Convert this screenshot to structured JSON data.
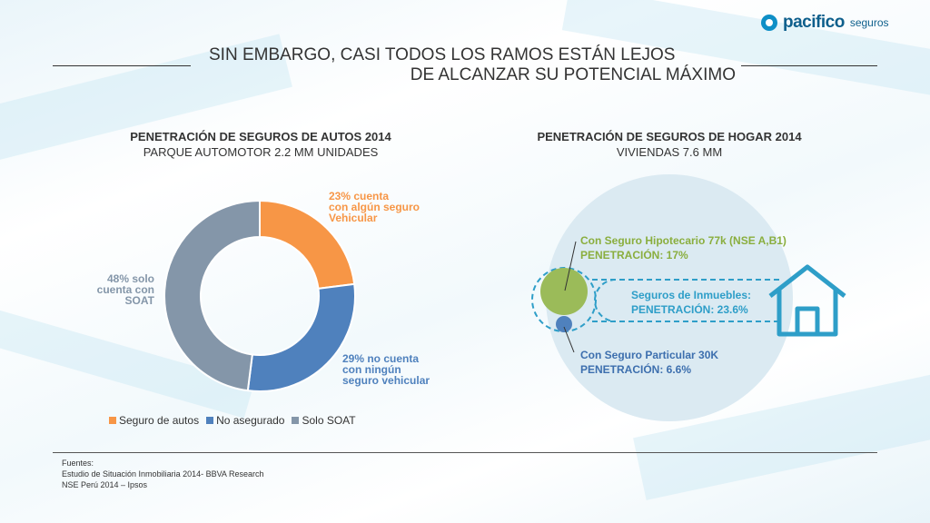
{
  "brand": {
    "name": "pacifico",
    "sub": "seguros"
  },
  "title": {
    "line1": "SIN EMBARGO, CASI TODOS LOS RAMOS ESTÁN LEJOS",
    "line2": "DE ALCANZAR SU POTENCIAL MÁXIMO"
  },
  "colors": {
    "orange": "#f79646",
    "blue": "#4f81bd",
    "gray": "#8496a9",
    "green": "#9bbb59",
    "dark_blue": "#4f81bd",
    "house": "#2e9ec8",
    "circle": "#dbeaf2"
  },
  "chart_data": [
    {
      "type": "pie",
      "title": "PENETRACIÓN DE SEGUROS DE AUTOS 2014",
      "subtitle": "PARQUE AUTOMOTOR  2.2 MM UNIDADES",
      "categories": [
        "Seguro de autos",
        "No asegurado",
        "Solo SOAT"
      ],
      "values": [
        23,
        29,
        48
      ],
      "data_labels": [
        [
          "23% cuenta",
          "con algún seguro",
          "Vehicular"
        ],
        [
          "29% no cuenta",
          "con ningún",
          "seguro vehicular"
        ],
        [
          "48% solo",
          "cuenta con",
          "SOAT"
        ]
      ],
      "legend": "bottom"
    },
    {
      "type": "other",
      "title": "PENETRACIÓN DE SEGUROS DE HOGAR 2014",
      "subtitle": "VIVIENDAS  7.6 MM",
      "segments": [
        {
          "label": "Con Seguro Hipotecario 77k (NSE A,B1)",
          "detail": "PENETRACIÓN: 17%",
          "value": 17
        },
        {
          "label": "Con Seguro Particular 30K",
          "detail": "PENETRACIÓN: 6.6%",
          "value": 6.6
        }
      ],
      "total": {
        "label": "Seguros de Inmuebles:",
        "detail": "PENETRACIÓN: 23.6%",
        "value": 23.6
      }
    }
  ],
  "sources": {
    "heading": "Fuentes:",
    "items": [
      "Estudio de Situación Inmobiliaria 2014- BBVA Research",
      "NSE Perú 2014 – Ipsos"
    ]
  }
}
